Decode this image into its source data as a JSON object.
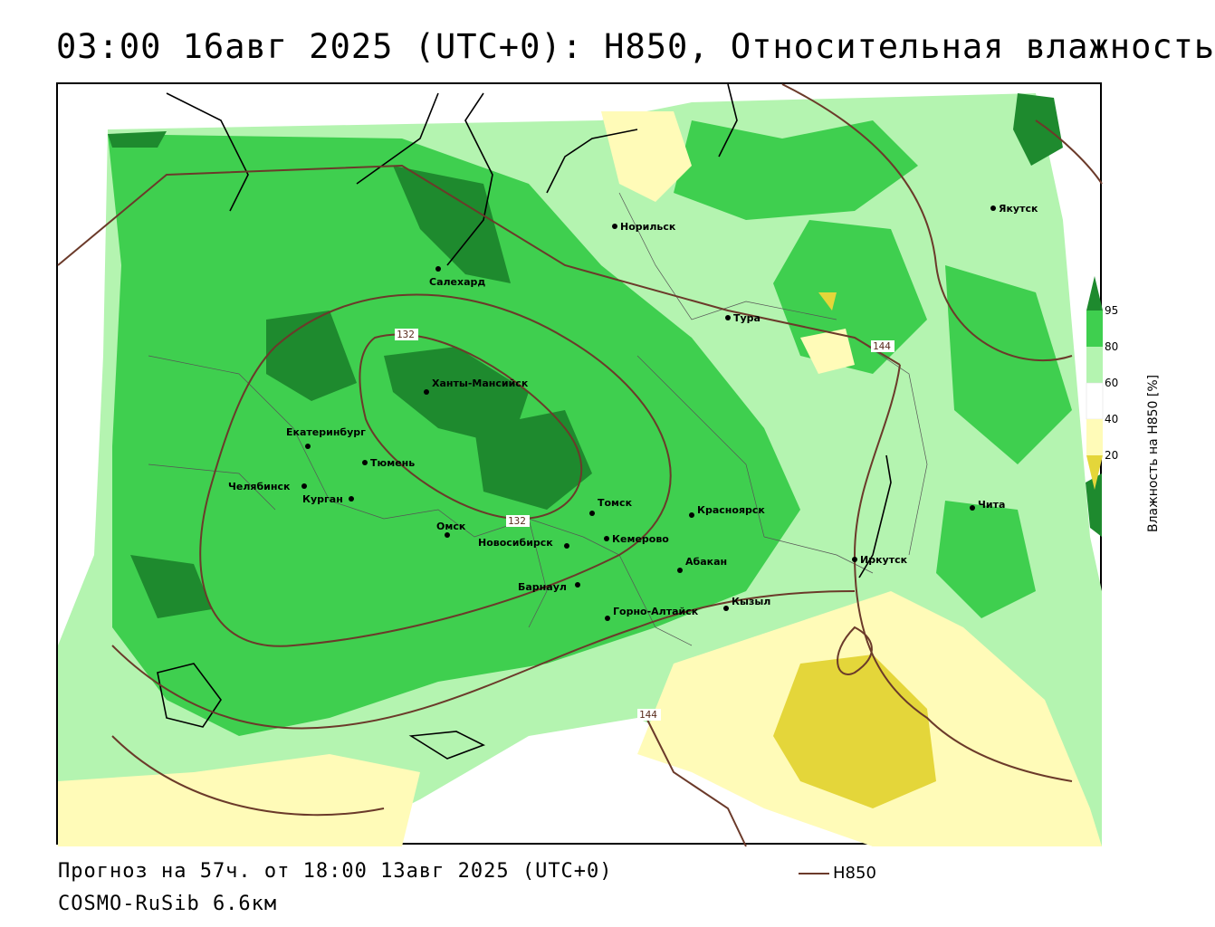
{
  "title": "03:00 16авг 2025 (UTC+0): H850, Относительная влажность",
  "footer": {
    "forecast_line": "Прогноз на 57ч. от 18:00 13авг 2025 (UTC+0)",
    "model_line": "COSMO-RuSib 6.6км"
  },
  "line_legend": {
    "label": "H850",
    "color": "#6b3a2a"
  },
  "colorbar": {
    "title": "Влажность на H850 [%]",
    "ticks": [
      "95",
      "80",
      "60",
      "40",
      "20"
    ],
    "colors": {
      "very_high": "#1e8a2e",
      "high": "#3fcf4f",
      "medium": "#b4f4b0",
      "neutral": "#ffffff",
      "low": "#fffbb8",
      "very_low": "#e4d63a"
    }
  },
  "contours": {
    "labels": [
      "132",
      "132",
      "144",
      "144"
    ]
  },
  "cities": [
    {
      "name": "Якутск"
    },
    {
      "name": "Норильск"
    },
    {
      "name": "Салехард"
    },
    {
      "name": "Тура"
    },
    {
      "name": "Ханты-Мансийск"
    },
    {
      "name": "Екатеринбург"
    },
    {
      "name": "Тюмень"
    },
    {
      "name": "Челябинск"
    },
    {
      "name": "Курган"
    },
    {
      "name": "Омск"
    },
    {
      "name": "Новосибирск"
    },
    {
      "name": "Томск"
    },
    {
      "name": "Кемерово"
    },
    {
      "name": "Красноярск"
    },
    {
      "name": "Барнаул"
    },
    {
      "name": "Абакан"
    },
    {
      "name": "Горно-Алтайск"
    },
    {
      "name": "Кызыл"
    },
    {
      "name": "Иркутск"
    },
    {
      "name": "Чита"
    }
  ]
}
